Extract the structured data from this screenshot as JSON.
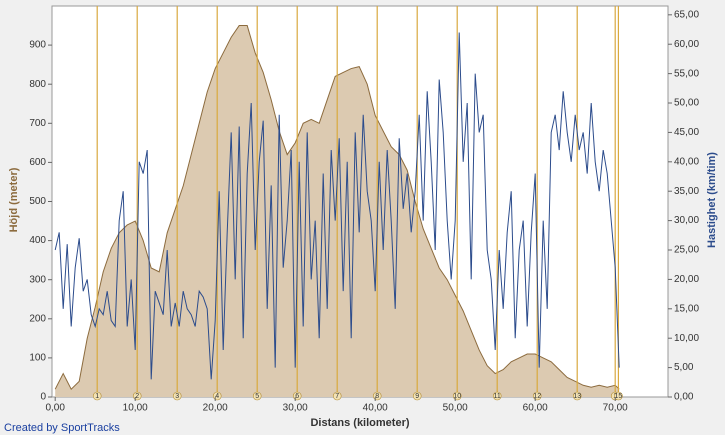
{
  "chart_data": {
    "type": "area-line",
    "footer": "Created by SportTracks",
    "xlabel": "Distans (kilometer)",
    "ylabel": "Höjd (meter)",
    "y2label": "Hastighet (km/tim)",
    "xlim": [
      -0.4,
      76.6
    ],
    "ylim": [
      0,
      1000
    ],
    "y2lim": [
      0,
      66.5
    ],
    "xticks": [
      {
        "value": 0,
        "label": "0,00"
      },
      {
        "value": 10,
        "label": "10,00"
      },
      {
        "value": 20,
        "label": "20,00"
      },
      {
        "value": 30,
        "label": "30,00"
      },
      {
        "value": 40,
        "label": "40,00"
      },
      {
        "value": 50,
        "label": "50,00"
      },
      {
        "value": 60,
        "label": "60,00"
      },
      {
        "value": 70,
        "label": "70,00"
      }
    ],
    "yticks": [
      0,
      100,
      200,
      300,
      400,
      500,
      600,
      700,
      800,
      900
    ],
    "y2ticks": [
      {
        "value": 0,
        "label": "0,00"
      },
      {
        "value": 5,
        "label": "5,00"
      },
      {
        "value": 10,
        "label": "10,00"
      },
      {
        "value": 15,
        "label": "15,00"
      },
      {
        "value": 20,
        "label": "20,00"
      },
      {
        "value": 25,
        "label": "25,00"
      },
      {
        "value": 30,
        "label": "30,00"
      },
      {
        "value": 35,
        "label": "35,00"
      },
      {
        "value": 40,
        "label": "40,00"
      },
      {
        "value": 45,
        "label": "45,00"
      },
      {
        "value": 50,
        "label": "50,00"
      },
      {
        "value": 55,
        "label": "55,00"
      },
      {
        "value": 60,
        "label": "60,00"
      },
      {
        "value": 65,
        "label": "65,00"
      }
    ],
    "laps": {
      "x": [
        5.25,
        10.25,
        15.25,
        20.25,
        25.25,
        30.25,
        35.25,
        40.25,
        45.25,
        50.25,
        55.25,
        60.25,
        65.25,
        70.0,
        70.4
      ],
      "labels": [
        "1",
        "2",
        "3",
        "4",
        "5",
        "6",
        "7",
        "8",
        "9",
        "10",
        "11",
        "12",
        "13",
        "1",
        "15"
      ],
      "color": "#d9a93e"
    },
    "series": [
      {
        "name": "Höjd",
        "color": "#8c6b3e",
        "fill": "#dccab1",
        "x": [
          0,
          1,
          2,
          3,
          4,
          5,
          6,
          7,
          8,
          9,
          10,
          11,
          12,
          13,
          14,
          15,
          16,
          17,
          18,
          19,
          20,
          21,
          22,
          23,
          24,
          25,
          26,
          27,
          28,
          29,
          30,
          31,
          32,
          33,
          34,
          35,
          36,
          37,
          38,
          39,
          40,
          41,
          42,
          43,
          44,
          45,
          46,
          47,
          48,
          49,
          50,
          51,
          52,
          53,
          54,
          55,
          56,
          57,
          58,
          59,
          60,
          61,
          62,
          63,
          64,
          65,
          66,
          67,
          68,
          69,
          70,
          70.5
        ],
        "values": [
          20,
          60,
          20,
          40,
          150,
          230,
          320,
          380,
          420,
          440,
          450,
          400,
          330,
          320,
          420,
          480,
          540,
          620,
          700,
          780,
          840,
          880,
          920,
          950,
          950,
          880,
          830,
          760,
          680,
          620,
          650,
          700,
          710,
          700,
          760,
          820,
          830,
          840,
          845,
          800,
          720,
          680,
          640,
          620,
          580,
          500,
          430,
          380,
          330,
          300,
          260,
          220,
          170,
          120,
          80,
          60,
          70,
          90,
          100,
          110,
          110,
          100,
          90,
          70,
          50,
          40,
          30,
          25,
          30,
          25,
          30,
          20
        ]
      },
      {
        "name": "Hastighet",
        "color": "#2c4c8c",
        "axis": "y2",
        "x": [
          0,
          0.5,
          1,
          1.5,
          2,
          2.5,
          3,
          3.5,
          4,
          4.5,
          5,
          5.5,
          6,
          6.5,
          7,
          7.5,
          8,
          8.5,
          9,
          9.5,
          10,
          10.5,
          11,
          11.5,
          12,
          12.5,
          13,
          13.5,
          14,
          14.5,
          15,
          15.5,
          16,
          16.5,
          17,
          17.5,
          18,
          18.5,
          19,
          19.5,
          20,
          20.5,
          21,
          21.5,
          22,
          22.5,
          23,
          23.5,
          24,
          24.5,
          25,
          25.5,
          26,
          26.5,
          27,
          27.5,
          28,
          28.5,
          29,
          29.5,
          30,
          30.5,
          31,
          31.5,
          32,
          32.5,
          33,
          33.5,
          34,
          34.5,
          35,
          35.5,
          36,
          36.5,
          37,
          37.5,
          38,
          38.5,
          39,
          39.5,
          40,
          40.5,
          41,
          41.5,
          42,
          42.5,
          43,
          43.5,
          44,
          44.5,
          45,
          45.5,
          46,
          46.5,
          47,
          47.5,
          48,
          48.5,
          49,
          49.5,
          50,
          50.5,
          51,
          51.5,
          52,
          52.5,
          53,
          53.5,
          54,
          54.5,
          55,
          55.5,
          56,
          56.5,
          57,
          57.5,
          58,
          58.5,
          59,
          59.5,
          60,
          60.5,
          61,
          61.5,
          62,
          62.5,
          63,
          63.5,
          64,
          64.5,
          65,
          65.5,
          66,
          66.5,
          67,
          67.5,
          68,
          68.5,
          69,
          69.5,
          70,
          70.5
        ],
        "values": [
          25,
          28,
          15,
          26,
          12,
          22,
          27,
          18,
          20,
          14,
          12,
          15,
          14,
          18,
          13,
          12,
          30,
          35,
          12,
          20,
          8,
          40,
          38,
          42,
          3,
          18,
          16,
          14,
          25,
          12,
          16,
          12,
          18,
          15,
          14,
          12,
          18,
          17,
          15,
          3,
          13,
          35,
          8,
          28,
          45,
          20,
          46,
          10,
          38,
          50,
          25,
          40,
          47,
          15,
          36,
          5,
          48,
          22,
          30,
          42,
          5,
          40,
          12,
          45,
          20,
          30,
          10,
          38,
          15,
          42,
          30,
          44,
          18,
          40,
          10,
          45,
          28,
          48,
          35,
          30,
          18,
          40,
          25,
          42,
          30,
          15,
          44,
          32,
          38,
          28,
          35,
          48,
          30,
          52,
          40,
          25,
          54,
          45,
          30,
          20,
          30,
          62,
          40,
          50,
          20,
          55,
          45,
          48,
          25,
          20,
          8,
          25,
          15,
          28,
          35,
          10,
          25,
          30,
          12,
          28,
          38,
          5,
          30,
          15,
          45,
          48,
          42,
          52,
          45,
          40,
          48,
          42,
          45,
          38,
          50,
          40,
          35,
          42,
          38,
          30,
          22,
          5
        ]
      }
    ]
  }
}
